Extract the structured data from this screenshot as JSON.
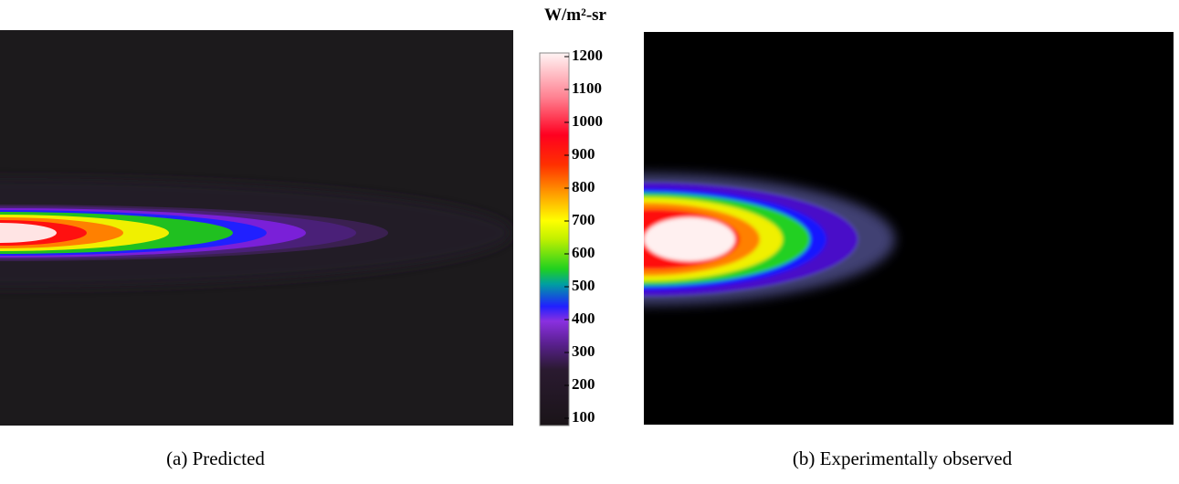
{
  "colorbar": {
    "title": "W/m²-sr",
    "ticks": [
      100,
      200,
      300,
      400,
      500,
      600,
      700,
      800,
      900,
      1000,
      1100,
      1200
    ]
  },
  "panels": [
    {
      "caption": "(a) Predicted"
    },
    {
      "caption": "(b) Experimentally observed"
    }
  ]
}
